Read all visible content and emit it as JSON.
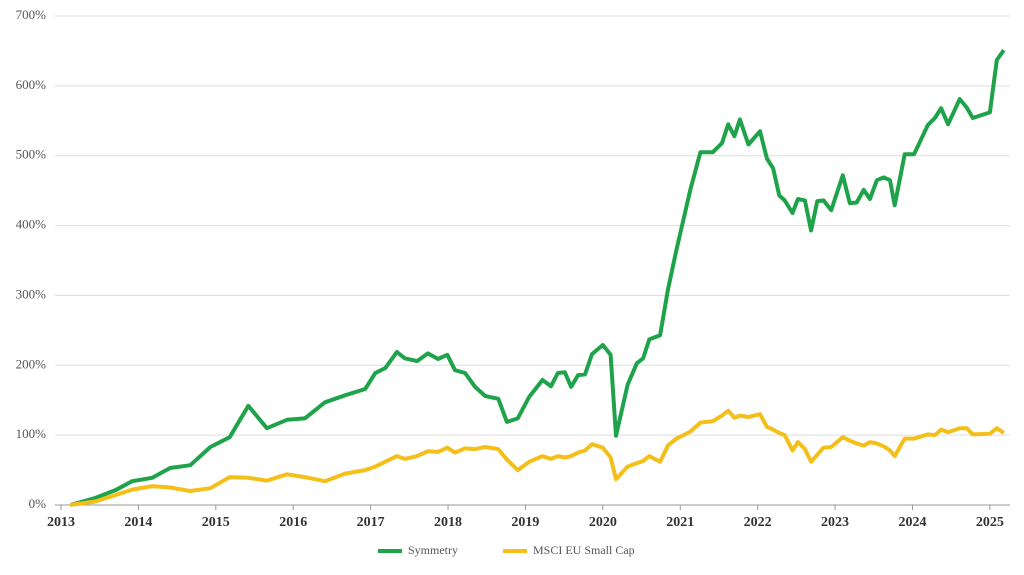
{
  "chart_data": {
    "type": "line",
    "x": [
      2013.12,
      2013.44,
      2013.7,
      2013.92,
      2014.18,
      2014.41,
      2014.67,
      2014.93,
      2015.18,
      2015.42,
      2015.66,
      2015.92,
      2016.15,
      2016.41,
      2016.67,
      2016.93,
      2017.06,
      2017.19,
      2017.34,
      2017.44,
      2017.6,
      2017.74,
      2017.87,
      2017.99,
      2018.09,
      2018.22,
      2018.35,
      2018.48,
      2018.65,
      2018.76,
      2018.9,
      2019.05,
      2019.22,
      2019.33,
      2019.42,
      2019.51,
      2019.59,
      2019.68,
      2019.77,
      2019.86,
      2020.0,
      2020.1,
      2020.17,
      2020.32,
      2020.44,
      2020.52,
      2020.6,
      2020.74,
      2020.84,
      2020.95,
      2021.13,
      2021.26,
      2021.42,
      2021.54,
      2021.62,
      2021.7,
      2021.77,
      2021.88,
      2022.03,
      2022.12,
      2022.2,
      2022.28,
      2022.35,
      2022.45,
      2022.52,
      2022.61,
      2022.69,
      2022.77,
      2022.85,
      2022.95,
      2023.1,
      2023.19,
      2023.28,
      2023.37,
      2023.45,
      2023.54,
      2023.63,
      2023.71,
      2023.77,
      2023.9,
      2024.02,
      2024.2,
      2024.29,
      2024.37,
      2024.46,
      2024.61,
      2024.7,
      2024.78,
      2025.0,
      2025.09,
      2025.18
    ],
    "series": [
      {
        "name": "Symmetry",
        "color": "#1fa34a",
        "values": [
          0,
          10,
          21,
          34,
          39,
          53,
          57,
          83,
          97,
          142,
          110,
          122,
          124,
          147,
          157,
          166,
          189,
          196,
          219,
          210,
          206,
          217,
          209,
          215,
          193,
          189,
          169,
          156,
          152,
          119,
          124,
          155,
          179,
          170,
          189,
          190,
          169,
          186,
          187,
          216,
          229,
          215,
          99,
          172,
          203,
          210,
          237,
          243,
          308,
          365,
          451,
          505,
          505,
          518,
          545,
          528,
          552,
          516,
          535,
          496,
          482,
          443,
          436,
          418,
          438,
          436,
          393,
          435,
          436,
          422,
          472,
          432,
          433,
          451,
          438,
          465,
          469,
          465,
          429,
          502,
          502,
          544,
          554,
          568,
          545,
          581,
          569,
          554,
          562,
          637,
          651
        ]
      },
      {
        "name": "MSCI EU Small Cap",
        "color": "#f5bf1a",
        "values": [
          0,
          5,
          14,
          22,
          27,
          25,
          20,
          24,
          40,
          39,
          35,
          44,
          40,
          34,
          45,
          50,
          55,
          62,
          70,
          66,
          70,
          77,
          76,
          82,
          75,
          81,
          80,
          83,
          80,
          65,
          50,
          62,
          70,
          66,
          70,
          68,
          70,
          75,
          78,
          87,
          82,
          68,
          37,
          55,
          60,
          63,
          70,
          62,
          85,
          95,
          105,
          118,
          120,
          128,
          135,
          125,
          128,
          126,
          130,
          112,
          108,
          103,
          100,
          78,
          90,
          80,
          62,
          72,
          82,
          83,
          97,
          92,
          88,
          85,
          90,
          88,
          84,
          78,
          70,
          95,
          95,
          101,
          100,
          108,
          104,
          110,
          110,
          101,
          102,
          110,
          103
        ]
      }
    ],
    "xlim": [
      2013,
      2025.26
    ],
    "xticks": [
      2013,
      2014,
      2015,
      2016,
      2017,
      2018,
      2019,
      2020,
      2021,
      2022,
      2023,
      2024,
      2025
    ],
    "ylim": [
      0,
      700
    ],
    "yticks": [
      {
        "value": 0,
        "label": "0%"
      },
      {
        "value": 100,
        "label": "100%"
      },
      {
        "value": 200,
        "label": "200%"
      },
      {
        "value": 300,
        "label": "300%"
      },
      {
        "value": 400,
        "label": "400%"
      },
      {
        "value": 500,
        "label": "500%"
      },
      {
        "value": 600,
        "label": "600%"
      },
      {
        "value": 700,
        "label": "700%"
      }
    ],
    "grid": true,
    "legend": "bottom"
  }
}
